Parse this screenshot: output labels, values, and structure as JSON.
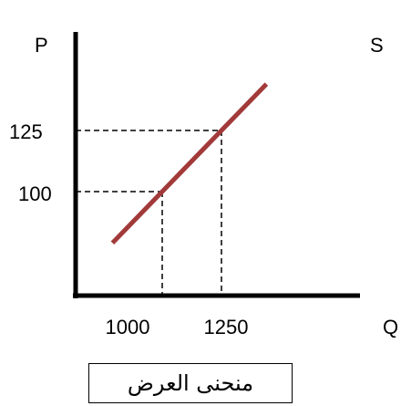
{
  "caption": "منحنى العرض",
  "colors": {
    "curve": "#A23A3A",
    "axis": "#000000",
    "guide": "#000000"
  },
  "chart_data": {
    "type": "line",
    "title": "",
    "xlabel": "Q",
    "ylabel": "P",
    "x_ticks": [
      1000,
      1250
    ],
    "y_ticks": [
      100,
      125
    ],
    "axis_ticks_shown": false,
    "series": [
      {
        "name": "S",
        "x": [
          1000,
          1250
        ],
        "y": [
          100,
          125
        ]
      }
    ],
    "guides": [
      {
        "x": 1000,
        "y": 100
      },
      {
        "x": 1250,
        "y": 125
      }
    ]
  }
}
